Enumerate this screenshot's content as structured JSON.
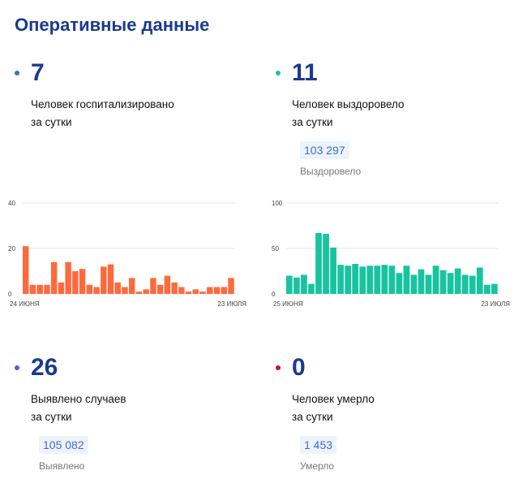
{
  "title": "Оперативные данные",
  "stats": [
    {
      "value": "7",
      "caption_line1": "Человек госпитализировано",
      "caption_line2": "за сутки",
      "dot_color": "#3a6fd1"
    },
    {
      "value": "11",
      "caption_line1": "Человек выздоровело",
      "caption_line2": "за сутки",
      "badge": "103 297",
      "badge_label": "Выздоровело",
      "dot_color": "#18c4a0"
    },
    {
      "value": "26",
      "caption_line1": "Выявлено случаев",
      "caption_line2": "за сутки",
      "badge": "105 082",
      "badge_label": "Выявлено",
      "dot_color": "#3a6fd1"
    },
    {
      "value": "0",
      "caption_line1": "Человек умерло",
      "caption_line2": "за сутки",
      "badge": "1 453",
      "badge_label": "Умерло",
      "dot_color": "#d0112b"
    }
  ],
  "chart_data": [
    {
      "type": "bar",
      "color": "#ff6a3d",
      "x_start_label": "24 июня",
      "x_end_label": "23 июля",
      "ylim": [
        0,
        40
      ],
      "yticks": [
        0,
        20,
        40
      ],
      "values": [
        21,
        4,
        4,
        4,
        14,
        5,
        14,
        10,
        11,
        4,
        3,
        12,
        13,
        5,
        3,
        7,
        1,
        2,
        7,
        4,
        8,
        5,
        3,
        1,
        2,
        1,
        3,
        3,
        3,
        7
      ]
    },
    {
      "type": "bar",
      "color": "#18c4a0",
      "x_start_label": "25 июня",
      "x_end_label": "23 июля",
      "ylim": [
        0,
        100
      ],
      "yticks": [
        0,
        50,
        100
      ],
      "values": [
        20,
        18,
        21,
        11,
        67,
        66,
        51,
        32,
        31,
        33,
        30,
        31,
        31,
        32,
        31,
        23,
        31,
        21,
        27,
        21,
        31,
        26,
        23,
        28,
        21,
        20,
        29,
        10,
        11
      ]
    }
  ]
}
